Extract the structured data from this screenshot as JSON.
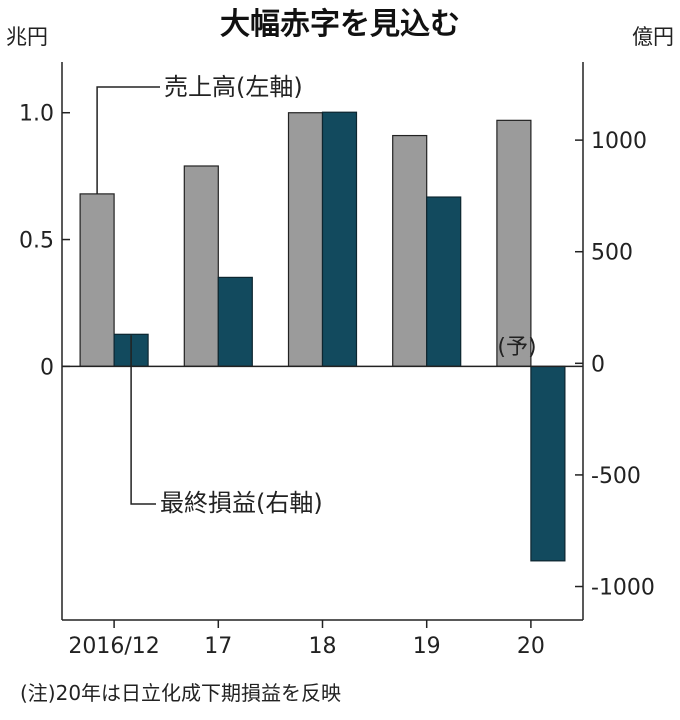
{
  "chart_data": {
    "type": "bar",
    "title": "大幅赤字を見込む",
    "left_axis": {
      "unit": "兆円",
      "ticks": [
        {
          "value": 0,
          "label": "0"
        },
        {
          "value": 0.5,
          "label": "0.5"
        },
        {
          "value": 1.0,
          "label": "1.0"
        }
      ],
      "range": [
        -1.0,
        1.2
      ]
    },
    "right_axis": {
      "unit": "億円",
      "ticks": [
        {
          "value": -1000,
          "label": "-1000"
        },
        {
          "value": -500,
          "label": "-500"
        },
        {
          "value": 0,
          "label": "0"
        },
        {
          "value": 500,
          "label": "500"
        },
        {
          "value": 1000,
          "label": "1000"
        }
      ],
      "range": [
        -1150,
        1350
      ]
    },
    "categories": [
      "2016/12",
      "17",
      "18",
      "19",
      "20"
    ],
    "series": [
      {
        "name": "売上高(左軸)",
        "axis": "left",
        "color": "#9b9b9b",
        "values": [
          0.68,
          0.79,
          1.0,
          0.91,
          0.97
        ]
      },
      {
        "name": "最終損益(右軸)",
        "axis": "right",
        "color": "#124a5e",
        "values": [
          130,
          385,
          1125,
          745,
          -885
        ]
      }
    ],
    "annotations": {
      "forecast": "(予)",
      "note": "(注)20年は日立化成下期損益を反映"
    },
    "grid": false
  }
}
